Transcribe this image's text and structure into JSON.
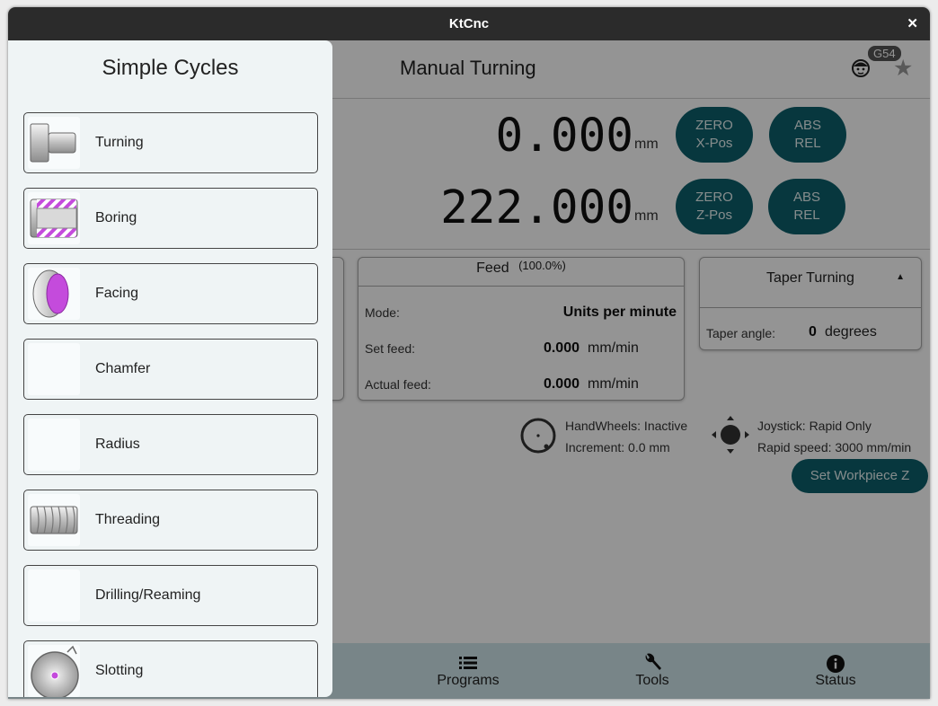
{
  "window": {
    "title": "KtCnc"
  },
  "header": {
    "title": "Manual Turning",
    "wcs_badge": "G54",
    "icons": [
      "face-icon",
      "star-icon"
    ]
  },
  "dro": {
    "x": {
      "value": "0.000",
      "unit": "mm",
      "zero_button": [
        "ZERO",
        "X-Pos"
      ],
      "mode_button": [
        "ABS",
        "REL"
      ]
    },
    "z": {
      "value": "222.000",
      "unit": "mm",
      "zero_button": [
        "ZERO",
        "Z-Pos"
      ],
      "mode_button": [
        "ABS",
        "REL"
      ]
    }
  },
  "feed": {
    "title": "Feed",
    "override": "(100.0%)",
    "mode_label": "Mode:",
    "mode_value": "Units per minute",
    "set_label": "Set feed:",
    "set_value": "0.000",
    "set_unit": "mm/min",
    "actual_label": "Actual feed:",
    "actual_value": "0.000",
    "actual_unit": "mm/min"
  },
  "taper": {
    "selected": "Taper Turning",
    "angle_label": "Taper angle:",
    "angle_value": "0",
    "angle_unit": "degrees"
  },
  "handwheel": {
    "status": "HandWheels: Inactive",
    "increment": "Increment: 0.0 mm"
  },
  "joystick": {
    "status": "Joystick: Rapid Only",
    "rapid": "Rapid speed: 3000 mm/min"
  },
  "set_workpiece_button": "Set Workpiece Z",
  "bottom_nav": [
    {
      "label": "Programs",
      "icon": "list-icon"
    },
    {
      "label": "Tools",
      "icon": "wrench-icon"
    },
    {
      "label": "Status",
      "icon": "info-icon"
    }
  ],
  "drawer": {
    "title": "Simple Cycles",
    "items": [
      {
        "label": "Turning",
        "icon": "turning-icon"
      },
      {
        "label": "Boring",
        "icon": "boring-icon"
      },
      {
        "label": "Facing",
        "icon": "facing-icon"
      },
      {
        "label": "Chamfer",
        "icon": "chamfer-icon"
      },
      {
        "label": "Radius",
        "icon": "radius-icon"
      },
      {
        "label": "Threading",
        "icon": "threading-icon"
      },
      {
        "label": "Drilling/Reaming",
        "icon": "drilling-icon"
      },
      {
        "label": "Slotting",
        "icon": "slotting-icon"
      }
    ]
  },
  "colors": {
    "accent": "#0d5f6b",
    "nav_background": "#cfe5ea",
    "drawer_background": "#eff4f5",
    "highlight": "#c44bdc"
  }
}
